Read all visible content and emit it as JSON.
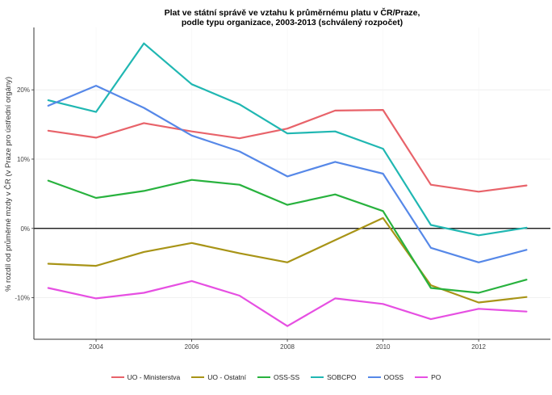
{
  "chart_data": {
    "type": "line",
    "title_line1": "Plat ve státní správě ve vztahu k průměrnému platu v ČR/Praze,",
    "title_line2": "podle typu organizace, 2003-2013 (schválený rozpočet)",
    "xlabel": "",
    "ylabel": "% rozdíl od průměrné mzdy v ČR (v Praze pro ústřední orgány)",
    "x": [
      2003,
      2004,
      2005,
      2006,
      2007,
      2008,
      2009,
      2010,
      2011,
      2012,
      2013
    ],
    "xlim": [
      2002.7,
      2013.5
    ],
    "ylim": [
      -16,
      29
    ],
    "xticks": [
      2004,
      2006,
      2008,
      2010,
      2012
    ],
    "yticks": [
      {
        "value": 20,
        "label": "20%"
      },
      {
        "value": 10,
        "label": "10%"
      },
      {
        "value": 0,
        "label": "0%"
      },
      {
        "value": -10,
        "label": "-10%"
      }
    ],
    "grid": true,
    "zero_line": true,
    "legend_position": "bottom",
    "series": [
      {
        "name": "UO - Ministerstva",
        "color": "#E8636A",
        "values": [
          14.1,
          13.1,
          15.2,
          14.0,
          13.0,
          14.4,
          17.0,
          17.1,
          6.3,
          5.3,
          6.2
        ]
      },
      {
        "name": "UO - Ostatní",
        "color": "#A89417",
        "values": [
          -5.1,
          -5.4,
          -3.4,
          -2.1,
          -3.6,
          -4.9,
          -1.7,
          1.5,
          -8.2,
          -10.7,
          -9.9
        ]
      },
      {
        "name": "OSS-SS",
        "color": "#28B23E",
        "values": [
          6.9,
          4.4,
          5.4,
          7.0,
          6.3,
          3.4,
          4.9,
          2.5,
          -8.6,
          -9.3,
          -7.4
        ]
      },
      {
        "name": "SOBCPO",
        "color": "#20B7B2",
        "values": [
          18.5,
          16.8,
          26.7,
          20.8,
          17.9,
          13.7,
          14.0,
          11.5,
          0.5,
          -1.0,
          0.1
        ]
      },
      {
        "name": "OOSS",
        "color": "#5688E8",
        "values": [
          17.7,
          20.6,
          17.4,
          13.4,
          11.1,
          7.5,
          9.6,
          7.9,
          -2.8,
          -4.9,
          -3.1
        ]
      },
      {
        "name": "PO",
        "color": "#E64FE2",
        "values": [
          -8.6,
          -10.1,
          -9.3,
          -7.6,
          -9.7,
          -14.1,
          -10.1,
          -10.9,
          -13.1,
          -11.6,
          -12.0
        ]
      }
    ]
  }
}
